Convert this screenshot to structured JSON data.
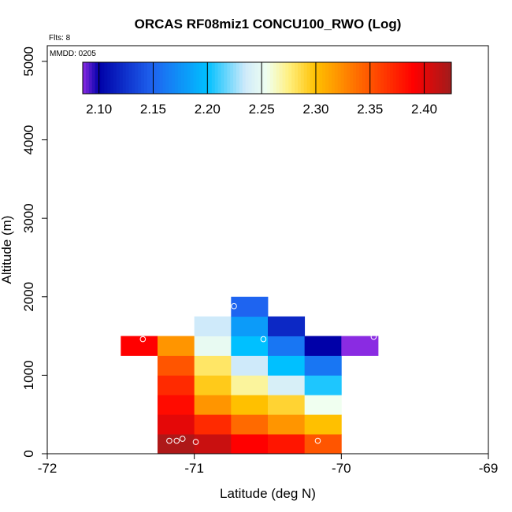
{
  "chart_data": {
    "type": "heatmap",
    "title": "ORCAS RF08miz1 CONCU100_RWO (Log)",
    "flts_label": "Flts: 8",
    "mmdd_label": "MMDD: 0205",
    "xlabel": "Latitude (deg N)",
    "ylabel": "Altitude (m)",
    "xlim": [
      -72,
      -69
    ],
    "ylim": [
      0,
      5200
    ],
    "xticks": [
      -72,
      -71,
      -70,
      -69
    ],
    "yticks": [
      0,
      1000,
      2000,
      3000,
      4000,
      5000
    ],
    "colorbar": {
      "range": [
        2.085,
        2.425
      ],
      "ticks": [
        2.1,
        2.15,
        2.2,
        2.25,
        2.3,
        2.35,
        2.4
      ],
      "tick_labels": [
        "2.10",
        "2.15",
        "2.20",
        "2.25",
        "2.30",
        "2.35",
        "2.40"
      ],
      "stops": [
        {
          "v": 2.085,
          "c": "#8a2be2"
        },
        {
          "v": 2.1,
          "c": "#0000a8"
        },
        {
          "v": 2.15,
          "c": "#1e64f0"
        },
        {
          "v": 2.2,
          "c": "#00c0ff"
        },
        {
          "v": 2.235,
          "c": "#cfeafa"
        },
        {
          "v": 2.255,
          "c": "#f0fff0"
        },
        {
          "v": 2.275,
          "c": "#fff080"
        },
        {
          "v": 2.3,
          "c": "#ffc000"
        },
        {
          "v": 2.34,
          "c": "#ff6a00"
        },
        {
          "v": 2.39,
          "c": "#ff0000"
        },
        {
          "v": 2.425,
          "c": "#a01c1c"
        }
      ]
    },
    "x_bin_width": 0.25,
    "y_bin_height": 250,
    "cells": [
      {
        "x0": -71.25,
        "y0": 0,
        "value": 2.42
      },
      {
        "x0": -71.0,
        "y0": 0,
        "value": 2.41
      },
      {
        "x0": -70.75,
        "y0": 0,
        "value": 2.39
      },
      {
        "x0": -70.5,
        "y0": 0,
        "value": 2.38
      },
      {
        "x0": -70.25,
        "y0": 0,
        "value": 2.35
      },
      {
        "x0": -71.25,
        "y0": 250,
        "value": 2.4
      },
      {
        "x0": -71.0,
        "y0": 250,
        "value": 2.37
      },
      {
        "x0": -70.75,
        "y0": 250,
        "value": 2.34
      },
      {
        "x0": -70.5,
        "y0": 250,
        "value": 2.32
      },
      {
        "x0": -70.25,
        "y0": 250,
        "value": 2.3
      },
      {
        "x0": -71.25,
        "y0": 500,
        "value": 2.385
      },
      {
        "x0": -71.0,
        "y0": 500,
        "value": 2.32
      },
      {
        "x0": -70.75,
        "y0": 500,
        "value": 2.3
      },
      {
        "x0": -70.5,
        "y0": 500,
        "value": 2.29
      },
      {
        "x0": -70.25,
        "y0": 500,
        "value": 2.255
      },
      {
        "x0": -71.25,
        "y0": 750,
        "value": 2.37
      },
      {
        "x0": -71.0,
        "y0": 750,
        "value": 2.295
      },
      {
        "x0": -70.75,
        "y0": 750,
        "value": 2.27
      },
      {
        "x0": -70.5,
        "y0": 750,
        "value": 2.24
      },
      {
        "x0": -70.25,
        "y0": 750,
        "value": 2.205
      },
      {
        "x0": -71.25,
        "y0": 1000,
        "value": 2.35
      },
      {
        "x0": -71.0,
        "y0": 1000,
        "value": 2.28
      },
      {
        "x0": -70.75,
        "y0": 1000,
        "value": 2.235
      },
      {
        "x0": -70.5,
        "y0": 1000,
        "value": 2.2
      },
      {
        "x0": -70.25,
        "y0": 1000,
        "value": 2.16
      },
      {
        "x0": -71.5,
        "y0": 1250,
        "value": 2.39
      },
      {
        "x0": -71.25,
        "y0": 1250,
        "value": 2.32
      },
      {
        "x0": -71.0,
        "y0": 1250,
        "value": 2.25
      },
      {
        "x0": -70.75,
        "y0": 1250,
        "value": 2.2
      },
      {
        "x0": -70.5,
        "y0": 1250,
        "value": 2.16
      },
      {
        "x0": -70.25,
        "y0": 1250,
        "value": 2.1
      },
      {
        "x0": -70.0,
        "y0": 1250,
        "value": 2.085
      },
      {
        "x0": -71.0,
        "y0": 1500,
        "value": 2.235
      },
      {
        "x0": -70.75,
        "y0": 1500,
        "value": 2.18
      },
      {
        "x0": -70.5,
        "y0": 1500,
        "value": 2.12
      },
      {
        "x0": -70.75,
        "y0": 1750,
        "value": 2.15
      }
    ],
    "points": [
      {
        "x": -71.35,
        "y": 1460
      },
      {
        "x": -70.53,
        "y": 1460
      },
      {
        "x": -69.78,
        "y": 1490
      },
      {
        "x": -70.73,
        "y": 1880
      },
      {
        "x": -71.17,
        "y": 165
      },
      {
        "x": -71.12,
        "y": 165
      },
      {
        "x": -71.08,
        "y": 190
      },
      {
        "x": -70.99,
        "y": 150
      },
      {
        "x": -70.16,
        "y": 165
      }
    ]
  }
}
